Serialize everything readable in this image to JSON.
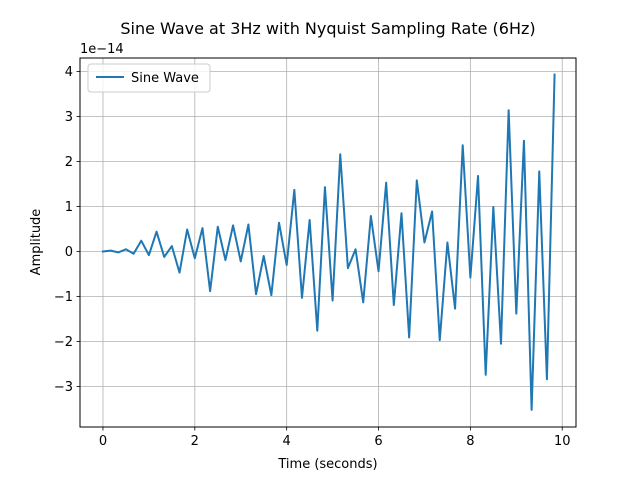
{
  "chart_data": {
    "type": "line",
    "title": "Sine Wave at 3Hz with Nyquist Sampling Rate (6Hz)",
    "xlabel": "Time (seconds)",
    "ylabel": "Amplitude",
    "y_offset_text": "1e−14",
    "xlim": [
      -0.5,
      10.3
    ],
    "ylim": [
      -3.9,
      4.3
    ],
    "x_ticks": [
      0,
      2,
      4,
      6,
      8,
      10
    ],
    "x_tick_labels": [
      "0",
      "2",
      "4",
      "6",
      "8",
      "10"
    ],
    "y_ticks": [
      -3,
      -2,
      -1,
      0,
      1,
      2,
      3,
      4
    ],
    "y_tick_labels": [
      "−3",
      "−2",
      "−1",
      "0",
      "1",
      "2",
      "3",
      "4"
    ],
    "grid": true,
    "legend_position": "top-left",
    "series": [
      {
        "name": "Sine Wave",
        "color": "#1f77b4",
        "x": [
          0.0,
          0.1667,
          0.3333,
          0.5,
          0.6667,
          0.8333,
          1.0,
          1.1667,
          1.3333,
          1.5,
          1.6667,
          1.8333,
          2.0,
          2.1667,
          2.3333,
          2.5,
          2.6667,
          2.8333,
          3.0,
          3.1667,
          3.3333,
          3.5,
          3.6667,
          3.8333,
          4.0,
          4.1667,
          4.3333,
          4.5,
          4.6667,
          4.8333,
          5.0,
          5.1667,
          5.3333,
          5.5,
          5.6667,
          5.8333,
          6.0,
          6.1667,
          6.3333,
          6.5,
          6.6667,
          6.8333,
          7.0,
          7.1667,
          7.3333,
          7.5,
          7.6667,
          7.8333,
          8.0,
          8.1667,
          8.3333,
          8.5,
          8.6667,
          8.8333,
          9.0,
          9.1667,
          9.3333,
          9.5,
          9.6667,
          9.8333
        ],
        "y": [
          0.0,
          0.02,
          -0.02,
          0.05,
          -0.05,
          0.24,
          -0.08,
          0.44,
          -0.12,
          0.12,
          -0.47,
          0.49,
          -0.15,
          0.52,
          -0.88,
          0.55,
          -0.19,
          0.58,
          -0.22,
          0.6,
          -0.95,
          -0.1,
          -0.97,
          0.64,
          -0.3,
          1.37,
          -1.03,
          0.7,
          -1.76,
          1.43,
          -1.09,
          2.16,
          -0.37,
          0.05,
          -1.13,
          0.79,
          -0.44,
          1.53,
          -1.19,
          0.85,
          -1.91,
          1.58,
          0.2,
          0.89,
          -1.97,
          0.2,
          -1.27,
          2.36,
          -0.58,
          1.68,
          -2.74,
          0.99,
          -2.05,
          3.14,
          -1.38,
          2.46,
          -3.52,
          1.78,
          -2.84,
          3.93
        ]
      }
    ]
  }
}
